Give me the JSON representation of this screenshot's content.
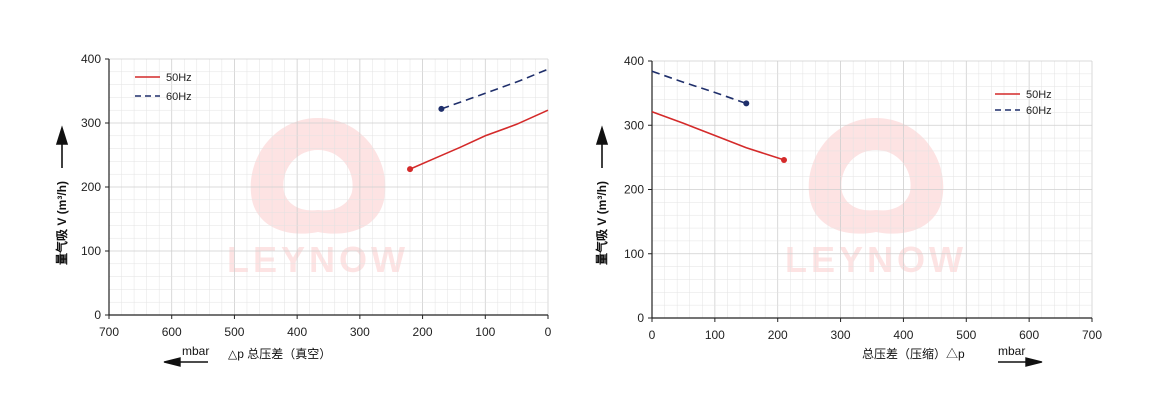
{
  "watermark": "LEYNOW",
  "colors": {
    "red": "#d42a2a",
    "navy": "#1f2f6b",
    "grid": "#e3e3e3",
    "gridMajor": "#cfcfcf",
    "watermark": "#fde3e3"
  },
  "chart_data": [
    {
      "type": "line",
      "x_direction": "reversed",
      "xlim": [
        0,
        700
      ],
      "ylim": [
        0,
        400
      ],
      "xticks": [
        0,
        100,
        200,
        300,
        400,
        500,
        600,
        700
      ],
      "yticks": [
        0,
        100,
        200,
        300,
        400
      ],
      "ylabel": "量气吸 V (m³/h)",
      "xlabel": "△p 总压差（真空）",
      "xunit": "mbar",
      "legend_position": "top-left",
      "grid": true,
      "series": [
        {
          "name": "50Hz",
          "style": "solid",
          "color": "#d42a2a",
          "marker_end": "start",
          "points": [
            [
              220,
              228
            ],
            [
              180,
              245
            ],
            [
              140,
              262
            ],
            [
              100,
              280
            ],
            [
              50,
              298
            ],
            [
              0,
              320
            ]
          ]
        },
        {
          "name": "60Hz",
          "style": "dashed",
          "color": "#1f2f6b",
          "marker_end": "start",
          "points": [
            [
              170,
              322
            ],
            [
              130,
              336
            ],
            [
              90,
              350
            ],
            [
              45,
              366
            ],
            [
              0,
              384
            ]
          ]
        }
      ]
    },
    {
      "type": "line",
      "x_direction": "normal",
      "xlim": [
        0,
        700
      ],
      "ylim": [
        0,
        400
      ],
      "xticks": [
        0,
        100,
        200,
        300,
        400,
        500,
        600,
        700
      ],
      "yticks": [
        0,
        100,
        200,
        300,
        400
      ],
      "ylabel": "量气吸 V (m³/h)",
      "xlabel": "总压差（压缩）△p",
      "xunit": "mbar",
      "legend_position": "top-right",
      "grid": true,
      "series": [
        {
          "name": "50Hz",
          "style": "solid",
          "color": "#d42a2a",
          "marker_end": "end",
          "points": [
            [
              0,
              321
            ],
            [
              50,
              303
            ],
            [
              100,
              284
            ],
            [
              150,
              265
            ],
            [
              210,
              246
            ]
          ]
        },
        {
          "name": "60Hz",
          "style": "dashed",
          "color": "#1f2f6b",
          "marker_end": "end",
          "points": [
            [
              0,
              384
            ],
            [
              50,
              367
            ],
            [
              100,
              351
            ],
            [
              150,
              334
            ]
          ]
        }
      ]
    }
  ]
}
